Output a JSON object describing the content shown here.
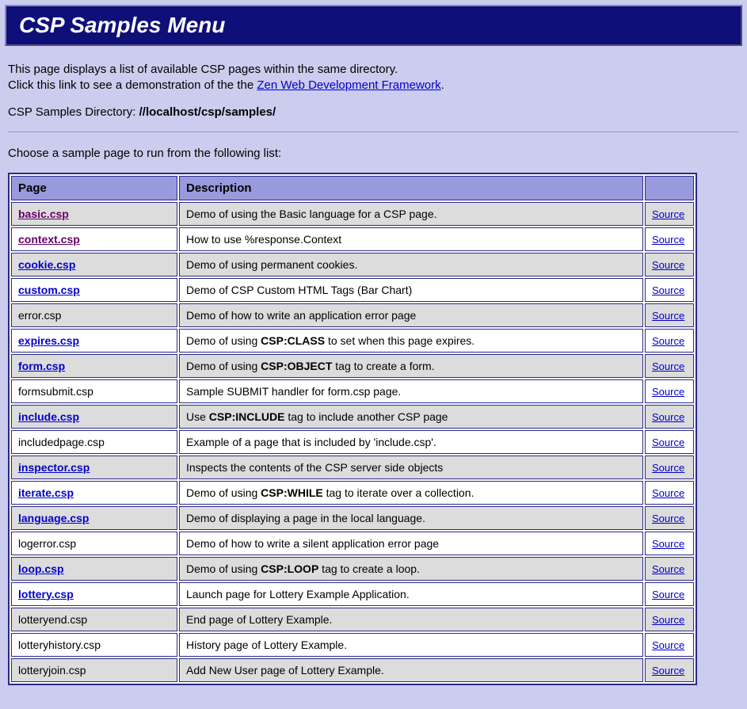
{
  "title": "CSP Samples Menu",
  "intro_line1": "This page displays a list of available CSP pages within the same directory.",
  "intro_line2_pre": "Click this link to see a demonstration of the the ",
  "intro_link_text": "Zen Web Development Framework",
  "intro_line2_post": ".",
  "dir_label": "CSP Samples Directory: ",
  "dir_path": "//localhost/csp/samples/",
  "choose_text": "Choose a sample page to run from the following list:",
  "headers": {
    "page": "Page",
    "description": "Description",
    "source": ""
  },
  "source_label": "Source",
  "rows": [
    {
      "page": "basic.csp",
      "link": true,
      "visited": true,
      "desc": "Demo of using the Basic language for a CSP page."
    },
    {
      "page": "context.csp",
      "link": true,
      "visited": true,
      "desc": "How to use %response.Context"
    },
    {
      "page": "cookie.csp",
      "link": true,
      "visited": false,
      "desc": "Demo of using permanent cookies."
    },
    {
      "page": "custom.csp",
      "link": true,
      "visited": false,
      "desc": "Demo of CSP Custom HTML Tags (Bar Chart)"
    },
    {
      "page": "error.csp",
      "link": false,
      "visited": false,
      "desc": "Demo of how to write an application error page"
    },
    {
      "page": "expires.csp",
      "link": true,
      "visited": false,
      "desc_html": "Demo of using <b>CSP:CLASS</b> to set when this page expires."
    },
    {
      "page": "form.csp",
      "link": true,
      "visited": false,
      "desc_html": "Demo of using <b>CSP:OBJECT</b> tag to create a form."
    },
    {
      "page": "formsubmit.csp",
      "link": false,
      "visited": false,
      "desc": "Sample SUBMIT handler for form.csp page."
    },
    {
      "page": "include.csp",
      "link": true,
      "visited": false,
      "desc_html": "Use <b>CSP:INCLUDE</b> tag to include another CSP page"
    },
    {
      "page": "includedpage.csp",
      "link": false,
      "visited": false,
      "desc": "Example of a page that is included by 'include.csp'."
    },
    {
      "page": "inspector.csp",
      "link": true,
      "visited": false,
      "desc": "Inspects the contents of the CSP server side objects"
    },
    {
      "page": "iterate.csp",
      "link": true,
      "visited": false,
      "desc_html": "Demo of using <b>CSP:WHILE</b> tag to iterate over a collection."
    },
    {
      "page": "language.csp",
      "link": true,
      "visited": false,
      "desc": "Demo of displaying a page in the local language."
    },
    {
      "page": "logerror.csp",
      "link": false,
      "visited": false,
      "desc": "Demo of how to write a silent application error page"
    },
    {
      "page": "loop.csp",
      "link": true,
      "visited": false,
      "desc_html": "Demo of using <b>CSP:LOOP</b> tag to create a loop."
    },
    {
      "page": "lottery.csp",
      "link": true,
      "visited": false,
      "desc": "Launch page for Lottery Example Application."
    },
    {
      "page": "lotteryend.csp",
      "link": false,
      "visited": false,
      "desc": "End page of Lottery Example."
    },
    {
      "page": "lotteryhistory.csp",
      "link": false,
      "visited": false,
      "desc": "History page of Lottery Example."
    },
    {
      "page": "lotteryjoin.csp",
      "link": false,
      "visited": false,
      "desc": "Add New User page of Lottery Example."
    }
  ]
}
